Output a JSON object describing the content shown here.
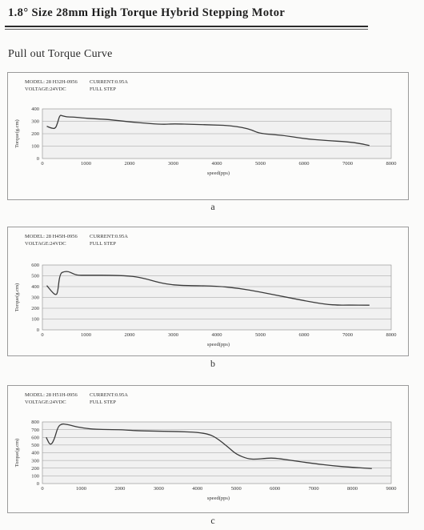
{
  "page": {
    "title": "1.8° Size 28mm High Torque Hybrid Stepping Motor",
    "section": "Pull out Torque Curve"
  },
  "chart_data": [
    {
      "type": "line",
      "caption": "a",
      "meta": {
        "model": "MODEL: 28 H32H-0956",
        "current": "CURRENT:0.95A",
        "voltage": "VOLTAGE:24VDC",
        "step": "FULL STEP"
      },
      "xlabel": "speed(pps)",
      "ylabel": "Torque(g.cm)",
      "xlim": [
        0,
        8000
      ],
      "ylim": [
        0,
        400
      ],
      "xticks": [
        0,
        1000,
        2000,
        3000,
        4000,
        5000,
        6000,
        7000,
        8000
      ],
      "yticks": [
        0,
        100,
        200,
        300,
        400
      ],
      "grid": true,
      "series": [
        {
          "x": [
            100,
            200,
            300,
            350,
            400,
            450,
            550,
            700,
            900,
            1200,
            1500,
            2000,
            2500,
            2800,
            3000,
            3500,
            4000,
            4300,
            4600,
            4800,
            5000,
            5500,
            6000,
            6500,
            7000,
            7300,
            7500
          ],
          "values": [
            260,
            245,
            240,
            290,
            350,
            345,
            335,
            335,
            328,
            320,
            315,
            295,
            280,
            275,
            280,
            275,
            270,
            265,
            250,
            230,
            200,
            188,
            160,
            145,
            135,
            120,
            105
          ]
        }
      ]
    },
    {
      "type": "line",
      "caption": "b",
      "meta": {
        "model": "MODEL: 28 H45H-0956",
        "current": "CURRENT:0.95A",
        "voltage": "VOLTAGE:24VDC",
        "step": "FULL STEP"
      },
      "xlabel": "speed(pps)",
      "ylabel": "Torque(g.cm)",
      "xlim": [
        0,
        8000
      ],
      "ylim": [
        0,
        600
      ],
      "xticks": [
        0,
        1000,
        2000,
        3000,
        4000,
        5000,
        6000,
        7000,
        8000
      ],
      "yticks": [
        0,
        100,
        200,
        300,
        400,
        500,
        600
      ],
      "grid": true,
      "series": [
        {
          "x": [
            100,
            200,
            300,
            350,
            400,
            500,
            600,
            700,
            800,
            1000,
            1500,
            2000,
            2300,
            2700,
            3000,
            3300,
            4000,
            4500,
            5000,
            5500,
            6000,
            6500,
            6800,
            7000,
            7500
          ],
          "values": [
            410,
            360,
            320,
            340,
            520,
            540,
            540,
            520,
            505,
            505,
            505,
            500,
            480,
            435,
            415,
            410,
            405,
            385,
            350,
            310,
            270,
            235,
            228,
            230,
            228
          ]
        }
      ]
    },
    {
      "type": "line",
      "caption": "c",
      "meta": {
        "model": "MODEL: 28 H51H-0956",
        "current": "CURRENT:0.95A",
        "voltage": "VOLTAGE:24VDC",
        "step": "FULL STEP"
      },
      "xlabel": "speed(pps)",
      "ylabel": "Torque(g.cm)",
      "xlim": [
        0,
        9000
      ],
      "ylim": [
        0,
        800
      ],
      "xticks": [
        0,
        1000,
        2000,
        3000,
        4000,
        5000,
        6000,
        7000,
        8000,
        9000
      ],
      "yticks": [
        0,
        100,
        200,
        300,
        400,
        500,
        600,
        700,
        800
      ],
      "grid": true,
      "series": [
        {
          "x": [
            100,
            200,
            300,
            400,
            500,
            600,
            700,
            900,
            1200,
            1600,
            2000,
            2300,
            2500,
            3000,
            3500,
            4000,
            4300,
            4500,
            4800,
            5000,
            5300,
            5500,
            5800,
            6000,
            6300,
            7000,
            7500,
            8000,
            8500
          ],
          "values": [
            600,
            490,
            560,
            740,
            775,
            770,
            760,
            735,
            710,
            700,
            700,
            690,
            685,
            680,
            675,
            665,
            640,
            590,
            470,
            380,
            320,
            315,
            330,
            330,
            310,
            260,
            230,
            210,
            195
          ]
        }
      ]
    }
  ]
}
